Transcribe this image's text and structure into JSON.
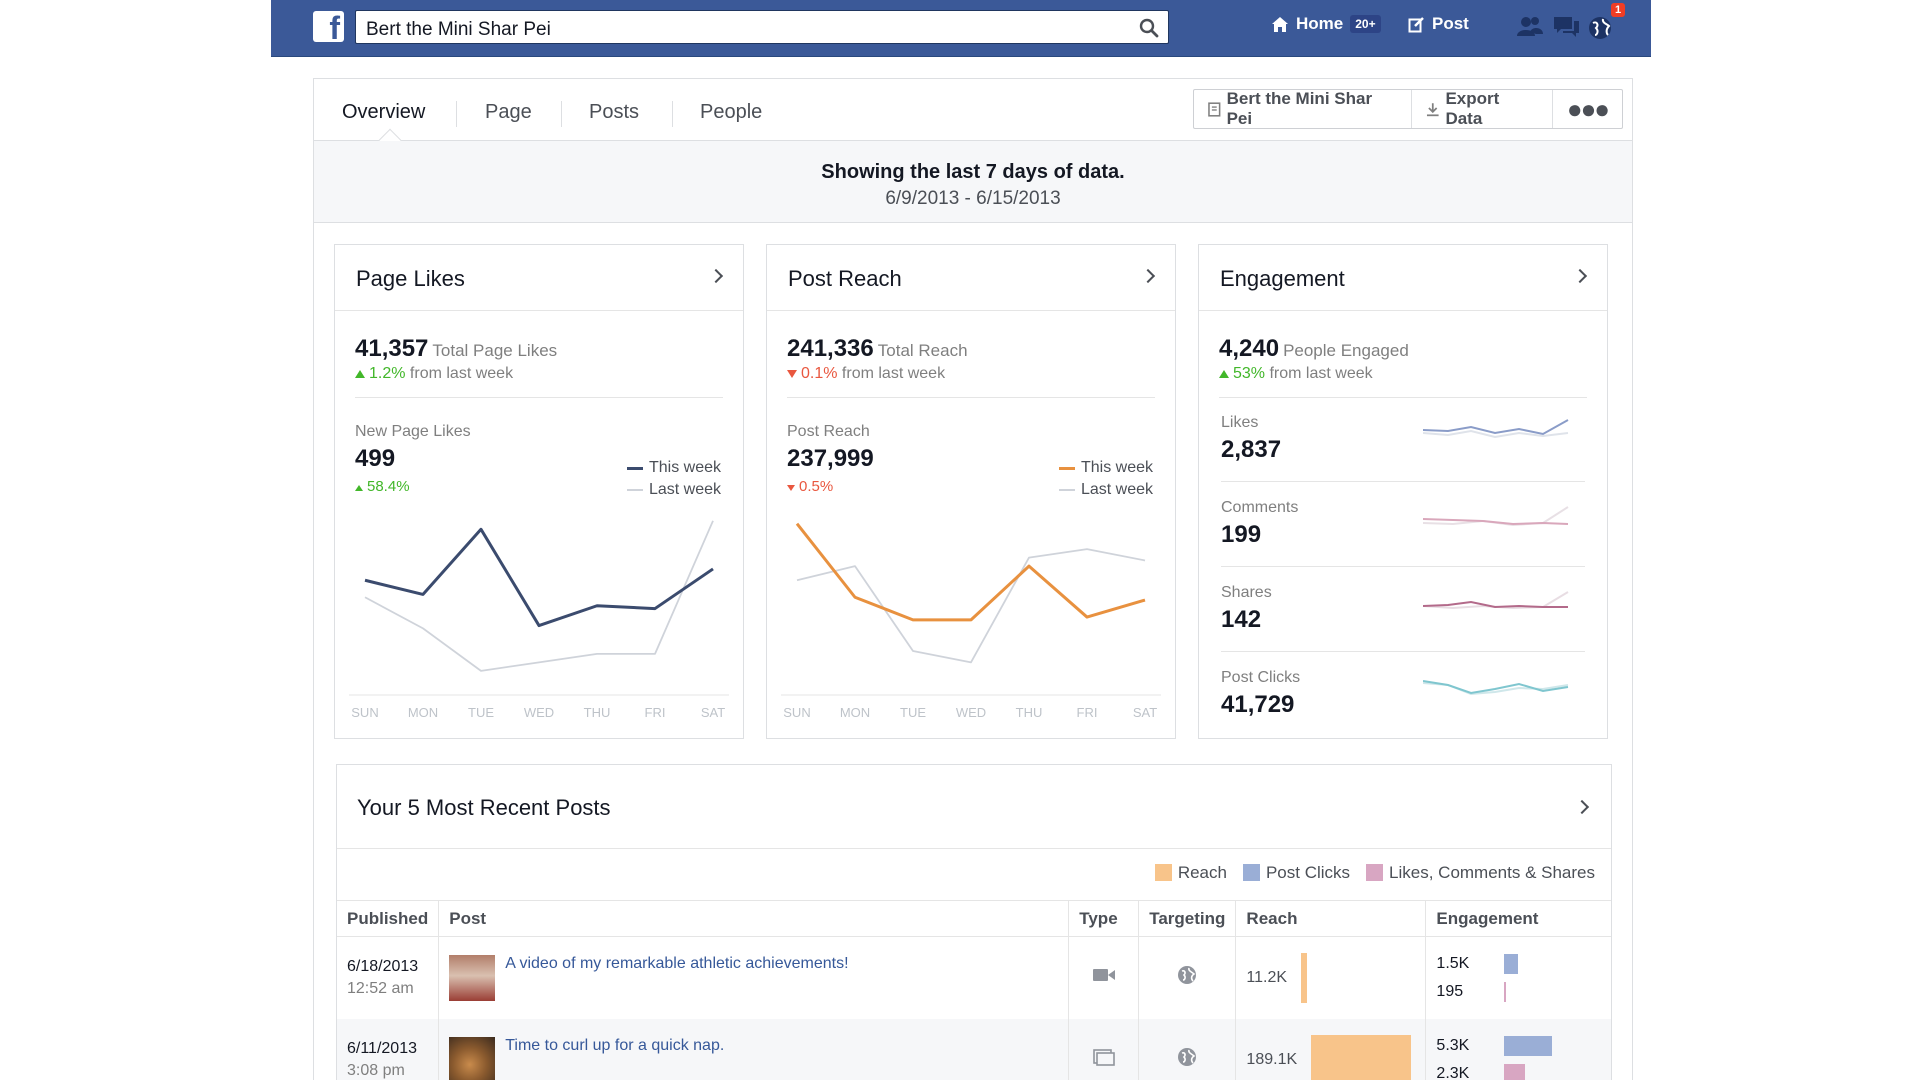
{
  "colors": {
    "fb_blue": "#3b5998",
    "this_week_likes": "#3b4b6e",
    "this_week_reach": "#e8913f",
    "last_week": "#cfd3da",
    "positive": "#42b72a",
    "negative": "#e9573f",
    "reach_swatch": "#f8c48a",
    "clicks_swatch": "#9aaed6",
    "lcs_swatch": "#d8a6c2"
  },
  "topbar": {
    "search_value": "Bert the Mini Shar Pei",
    "home_label": "Home",
    "home_badge": "20+",
    "post_label": "Post",
    "notification_count": "1"
  },
  "tabs": {
    "overview": "Overview",
    "page": "Page",
    "posts": "Posts",
    "people": "People",
    "page_button": "Bert the Mini Shar Pei",
    "export_button": "Export Data",
    "more_button": "●●●"
  },
  "daterange": {
    "title": "Showing the last 7 days of data.",
    "range": "6/9/2013 - 6/15/2013"
  },
  "page_likes": {
    "title": "Page Likes",
    "total": "41,357",
    "total_label": "Total Page Likes",
    "delta": "1.2%",
    "delta_suffix": "from last week",
    "sub_label": "New Page Likes",
    "sub_value": "499",
    "sub_delta": "58.4%",
    "legend_this": "This week",
    "legend_last": "Last week"
  },
  "post_reach": {
    "title": "Post Reach",
    "total": "241,336",
    "total_label": "Total Reach",
    "delta": "0.1%",
    "delta_suffix": "from last week",
    "sub_label": "Post Reach",
    "sub_value": "237,999",
    "sub_delta": "0.5%",
    "legend_this": "This week",
    "legend_last": "Last week"
  },
  "engagement": {
    "title": "Engagement",
    "total": "4,240",
    "total_label": "People Engaged",
    "delta": "53%",
    "delta_suffix": "from last week",
    "rows": [
      {
        "label": "Likes",
        "value": "2,837",
        "color": "#8a9cc8"
      },
      {
        "label": "Comments",
        "value": "199",
        "color": "#d9a7bb"
      },
      {
        "label": "Shares",
        "value": "142",
        "color": "#b36a8a"
      },
      {
        "label": "Post Clicks",
        "value": "41,729",
        "color": "#7fc6cf"
      }
    ]
  },
  "chart_data": [
    {
      "type": "line",
      "x": [
        "SUN",
        "MON",
        "TUE",
        "WED",
        "THU",
        "FRI",
        "SAT"
      ],
      "series": [
        {
          "name": "This week",
          "values": [
            72,
            67,
            90,
            56,
            63,
            62,
            76
          ]
        },
        {
          "name": "Last week",
          "values": [
            66,
            55,
            40,
            43,
            46,
            46,
            93
          ]
        }
      ],
      "ylim": [
        35,
        100
      ]
    },
    {
      "type": "line",
      "x": [
        "SUN",
        "MON",
        "TUE",
        "WED",
        "THU",
        "FRI",
        "SAT"
      ],
      "series": [
        {
          "name": "This week",
          "values": [
            92,
            66,
            58,
            58,
            77,
            59,
            65
          ]
        },
        {
          "name": "Last week",
          "values": [
            72,
            77,
            47,
            43,
            80,
            83,
            79
          ]
        }
      ],
      "ylim": [
        35,
        100
      ]
    }
  ],
  "posts": {
    "title": "Your 5 Most Recent Posts",
    "legend": {
      "reach": "Reach",
      "clicks": "Post Clicks",
      "lcs": "Likes, Comments & Shares"
    },
    "columns": [
      "Published",
      "Post",
      "Type",
      "Targeting",
      "Reach",
      "Engagement"
    ],
    "rows": [
      {
        "date": "6/18/2013",
        "time": "12:52 am",
        "text": "A video of my remarkable athletic achievements!",
        "type_icon": "video-icon",
        "targeting_icon": "globe-icon",
        "reach": "11.2K",
        "reach_k": 11.2,
        "eng_1": "1.5K",
        "eng_2": "195",
        "clicks_k": 1.5,
        "lcs_k": 0.195
      },
      {
        "date": "6/11/2013",
        "time": "3:08 pm",
        "text": "Time to curl up for a quick nap.",
        "type_icon": "photo-icon",
        "targeting_icon": "globe-icon",
        "reach": "189.1K",
        "reach_k": 189.1,
        "eng_1": "5.3K",
        "eng_2": "2.3K",
        "clicks_k": 5.3,
        "lcs_k": 2.3
      }
    ]
  }
}
